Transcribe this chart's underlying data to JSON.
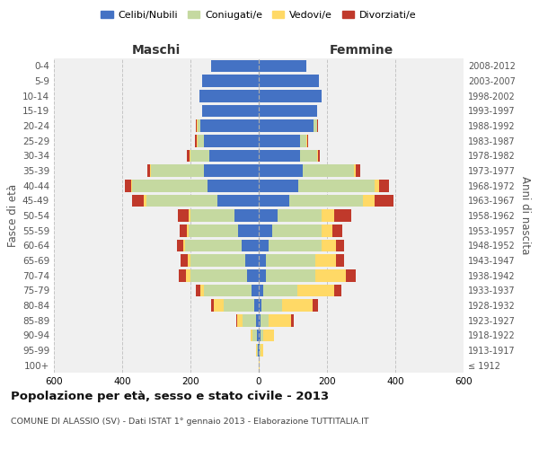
{
  "age_groups": [
    "100+",
    "95-99",
    "90-94",
    "85-89",
    "80-84",
    "75-79",
    "70-74",
    "65-69",
    "60-64",
    "55-59",
    "50-54",
    "45-49",
    "40-44",
    "35-39",
    "30-34",
    "25-29",
    "20-24",
    "15-19",
    "10-14",
    "5-9",
    "0-4"
  ],
  "birth_years": [
    "≤ 1912",
    "1913-1917",
    "1918-1922",
    "1923-1927",
    "1928-1932",
    "1933-1937",
    "1938-1942",
    "1943-1947",
    "1948-1952",
    "1953-1957",
    "1958-1962",
    "1963-1967",
    "1968-1972",
    "1973-1977",
    "1978-1982",
    "1983-1987",
    "1988-1992",
    "1993-1997",
    "1998-2002",
    "2003-2007",
    "2008-2012"
  ],
  "colors": {
    "celibi": "#4472c4",
    "coniugati": "#c5d9a0",
    "vedovi": "#ffd966",
    "divorziati": "#c0392b"
  },
  "males": {
    "celibi": [
      0,
      2,
      4,
      8,
      12,
      20,
      35,
      40,
      50,
      60,
      70,
      120,
      150,
      160,
      145,
      160,
      170,
      165,
      175,
      165,
      140
    ],
    "coniugati": [
      0,
      4,
      15,
      40,
      90,
      140,
      165,
      160,
      165,
      145,
      130,
      210,
      220,
      155,
      55,
      20,
      10,
      0,
      0,
      0,
      0
    ],
    "vedovi": [
      0,
      2,
      5,
      15,
      30,
      10,
      12,
      8,
      5,
      5,
      5,
      8,
      5,
      4,
      2,
      2,
      2,
      0,
      0,
      0,
      0
    ],
    "divorziati": [
      0,
      0,
      0,
      4,
      8,
      14,
      22,
      22,
      20,
      22,
      32,
      32,
      16,
      8,
      8,
      4,
      2,
      0,
      0,
      0,
      0
    ]
  },
  "females": {
    "nubili": [
      0,
      2,
      4,
      5,
      8,
      12,
      20,
      22,
      30,
      40,
      55,
      90,
      115,
      130,
      120,
      120,
      160,
      170,
      185,
      175,
      140
    ],
    "coniugate": [
      0,
      2,
      10,
      25,
      60,
      100,
      145,
      145,
      155,
      145,
      130,
      215,
      225,
      150,
      50,
      20,
      10,
      0,
      0,
      0,
      0
    ],
    "vedove": [
      2,
      8,
      30,
      65,
      90,
      110,
      90,
      60,
      40,
      30,
      35,
      35,
      12,
      5,
      4,
      2,
      2,
      0,
      0,
      0,
      0
    ],
    "divorziate": [
      0,
      2,
      2,
      8,
      15,
      20,
      30,
      22,
      26,
      30,
      50,
      55,
      30,
      12,
      6,
      2,
      2,
      0,
      0,
      0,
      0
    ]
  },
  "title": "Popolazione per età, sesso e stato civile - 2013",
  "subtitle": "COMUNE DI ALASSIO (SV) - Dati ISTAT 1° gennaio 2013 - Elaborazione TUTTITALIA.IT",
  "xlabel_left": "Maschi",
  "xlabel_right": "Femmine",
  "ylabel_left": "Fasce di età",
  "ylabel_right": "Anni di nascita",
  "xlim": 600,
  "legend_labels": [
    "Celibi/Nubili",
    "Coniugati/e",
    "Vedovi/e",
    "Divorziati/e"
  ],
  "bg_color": "#f0f0f0",
  "plot_bg": "#ffffff"
}
